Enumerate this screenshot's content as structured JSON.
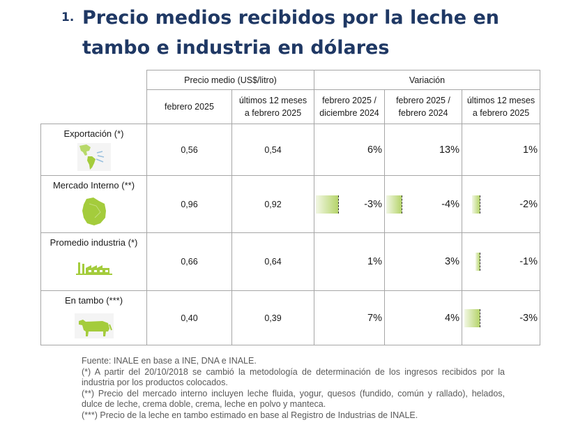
{
  "title": {
    "number": "1.",
    "line1": "Precio medios recibidos por la leche en",
    "line2": "tambo e industria en dólares"
  },
  "table": {
    "group_headers": {
      "price": "Precio medio (US$/litro)",
      "variation": "Variación"
    },
    "sub_headers": {
      "price_month": "febrero 2025",
      "price_12m_l1": "últimos 12 meses",
      "price_12m_l2": "a febrero 2025",
      "var_dec_l1": "febrero 2025 /",
      "var_dec_l2": "diciembre 2024",
      "var_yoy_l1": "febrero 2025 /",
      "var_yoy_l2": "febrero 2024",
      "var_12m_l1": "últimos 12 meses",
      "var_12m_l2": "a febrero 2025"
    },
    "rows": [
      {
        "label": "Exportación (*)",
        "icon": "americas-map-icon",
        "price_month": "0,56",
        "price_12m": "0,54",
        "var_dec": "6%",
        "var_dec_value": 6,
        "var_yoy": "13%",
        "var_yoy_value": 13,
        "var_12m": "1%",
        "var_12m_value": 1
      },
      {
        "label": "Mercado Interno (**)",
        "icon": "uruguay-map-icon",
        "price_month": "0,96",
        "price_12m": "0,92",
        "var_dec": "-3%",
        "var_dec_value": -3,
        "var_yoy": "-4%",
        "var_yoy_value": -4,
        "var_12m": "-2%",
        "var_12m_value": -2
      },
      {
        "label": "Promedio industria (*)",
        "icon": "factory-icon",
        "price_month": "0,66",
        "price_12m": "0,64",
        "var_dec": "1%",
        "var_dec_value": 1,
        "var_yoy": "3%",
        "var_yoy_value": 3,
        "var_12m": "-1%",
        "var_12m_value": -1
      },
      {
        "label": "En tambo (***)",
        "icon": "cow-icon",
        "price_month": "0,40",
        "price_12m": "0,39",
        "var_dec": "7%",
        "var_dec_value": 7,
        "var_yoy": "4%",
        "var_yoy_value": 4,
        "var_12m": "-3%",
        "var_12m_value": -3
      }
    ]
  },
  "notes": [
    "Fuente: INALE en base a INE, DNA e INALE.",
    "(*) A partir del 20/10/2018 se cambió la metodología de determinación de los ingresos recibidos por la industria por los productos colocados.",
    "(**) Precio del mercado interno incluyen leche fluida, yogur, quesos (fundido, común y rallado), helados, dulce de leche, crema doble, crema, leche en polvo y manteca.",
    "(***) Precio de la leche en tambo estimado en base al Registro de Industrias de INALE."
  ],
  "colors": {
    "title": "#1f3864",
    "price_text": "#2e75b6",
    "positive_bar": "#3a64b6",
    "negative_bar": "#b5d46b",
    "icon_green": "#a4cc3c"
  }
}
